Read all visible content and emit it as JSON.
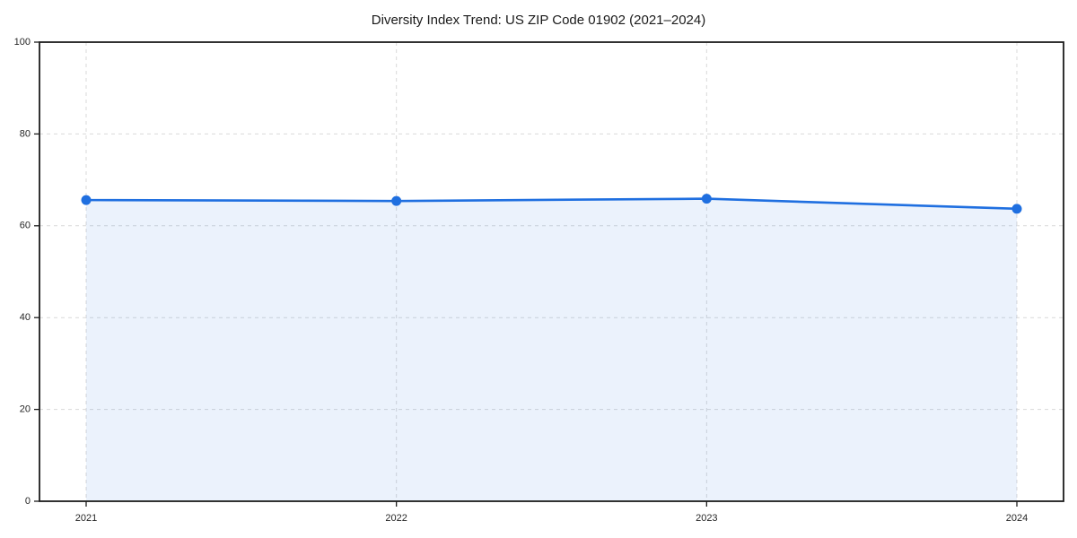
{
  "title": "Diversity Index Trend: US ZIP Code 01902 (2021–2024)",
  "chart_data": {
    "type": "line",
    "title": "Diversity Index Trend: US ZIP Code 01902 (2021–2024)",
    "x": [
      2021,
      2022,
      2023,
      2024
    ],
    "x_tick_labels": [
      "2021",
      "2022",
      "2023",
      "2024"
    ],
    "series": [
      {
        "name": "Diversity Index",
        "values": [
          65.6,
          65.4,
          65.9,
          63.7
        ]
      }
    ],
    "ylim": [
      0,
      100
    ],
    "yticks": [
      0,
      20,
      40,
      60,
      80,
      100
    ],
    "grid": true,
    "grid_style": "dashed",
    "legend_position": "none",
    "area_fill_to_zero": true,
    "marker": "circle",
    "colors": {
      "line": "#1f6fe0",
      "marker": "#1f6fe0",
      "area_fill": "rgba(31,111,224,0.09)",
      "grid": "#d9d9d9",
      "spine": "#1c1c1c",
      "tick_text": "#262626",
      "title_text": "#1a1a1a",
      "background": "#ffffff"
    }
  }
}
